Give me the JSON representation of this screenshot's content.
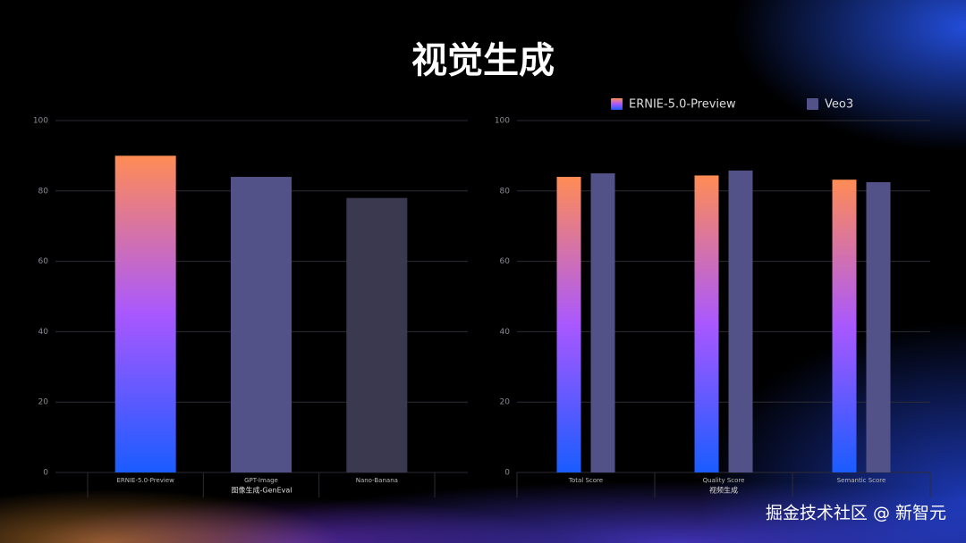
{
  "title": "视觉生成",
  "watermark": "掘金技术社区 @ 新智元",
  "chart_data": [
    {
      "type": "bar",
      "x_label": "图像生成-GenEval",
      "categories": [
        "ERNIE-5.0-Preview",
        "GPT-Image",
        "Nano-Banana"
      ],
      "values": [
        90,
        84,
        78
      ],
      "colors": [
        [
          "#ff8c55",
          "#a958ff",
          "#1a5cff"
        ],
        "#525288",
        "#3a3950"
      ],
      "ylim": [
        0,
        100
      ],
      "yticks": [
        0,
        20,
        40,
        60,
        80,
        100
      ],
      "grid": true
    },
    {
      "type": "bar",
      "x_label": "视频生成",
      "categories": [
        "Total Score",
        "Quality Score",
        "Semantic Score"
      ],
      "series": [
        {
          "name": "ERNIE-5.0-Preview",
          "color": [
            "#ff8c55",
            "#a958ff",
            "#1a5cff"
          ],
          "values": [
            84.0,
            84.4,
            83.2
          ]
        },
        {
          "name": "Veo3",
          "color": "#525288",
          "values": [
            85.0,
            85.8,
            82.5
          ]
        }
      ],
      "legend": "top",
      "ylim": [
        0,
        100
      ],
      "yticks": [
        0,
        20,
        40,
        60,
        80,
        100
      ],
      "grid": true
    }
  ]
}
